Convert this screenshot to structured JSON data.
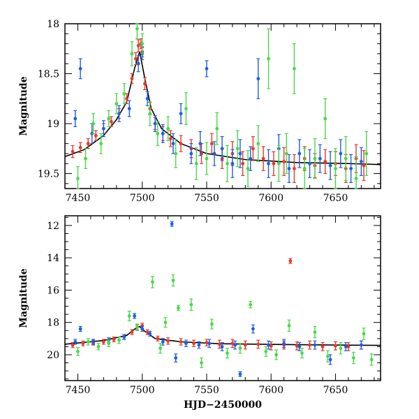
{
  "chart_data": [
    {
      "type": "scatter",
      "panel": "top",
      "title": "",
      "xlabel": "",
      "ylabel": "Magnitude",
      "xlim": [
        7440,
        7685
      ],
      "ylim": [
        19.65,
        18.0
      ],
      "y_inverted": true,
      "x_ticks": [
        7450,
        7500,
        7550,
        7600,
        7650
      ],
      "x_tick_labels": [
        "7450",
        "7500",
        "7550",
        "7600",
        "7650"
      ],
      "y_ticks": [
        18,
        18.5,
        19,
        19.5
      ],
      "y_tick_labels": [
        "18",
        "18.5",
        "19",
        "19.5"
      ],
      "grid": false,
      "legend": "none",
      "model_curve": {
        "color": "#000000",
        "x": [
          7440,
          7455,
          7470,
          7480,
          7488,
          7494,
          7498,
          7502,
          7507,
          7515,
          7530,
          7550,
          7580,
          7620,
          7660,
          7685
        ],
        "y": [
          19.33,
          19.26,
          19.12,
          18.96,
          18.78,
          18.45,
          18.28,
          18.55,
          18.85,
          19.05,
          19.2,
          19.3,
          19.36,
          19.39,
          19.4,
          19.41
        ]
      },
      "series": [
        {
          "color": "#e8372b",
          "x": [
            7446,
            7452,
            7458,
            7464,
            7470,
            7476,
            7482,
            7488,
            7492,
            7495,
            7497,
            7499,
            7500,
            7502,
            7506,
            7510,
            7516,
            7522,
            7530,
            7538,
            7546,
            7554,
            7562,
            7570,
            7578,
            7586,
            7594,
            7602,
            7610,
            7618,
            7626,
            7634,
            7642,
            7650,
            7658,
            7666,
            7672
          ],
          "y": [
            19.28,
            19.24,
            19.2,
            19.12,
            19.05,
            18.98,
            18.9,
            18.75,
            18.55,
            18.35,
            18.22,
            18.2,
            18.28,
            18.6,
            18.85,
            19.0,
            19.1,
            19.15,
            19.2,
            19.25,
            19.3,
            19.2,
            19.35,
            19.3,
            19.4,
            19.25,
            19.35,
            19.4,
            19.38,
            19.45,
            19.35,
            19.42,
            19.38,
            19.4,
            19.45,
            19.35,
            19.42
          ],
          "yerr": [
            0.06,
            0.05,
            0.05,
            0.05,
            0.05,
            0.05,
            0.05,
            0.05,
            0.05,
            0.06,
            0.06,
            0.05,
            0.05,
            0.06,
            0.06,
            0.06,
            0.07,
            0.08,
            0.08,
            0.09,
            0.1,
            0.1,
            0.1,
            0.12,
            0.12,
            0.12,
            0.12,
            0.12,
            0.14,
            0.14,
            0.12,
            0.12,
            0.12,
            0.12,
            0.14,
            0.14,
            0.15
          ]
        },
        {
          "color": "#1e5fe0",
          "x": [
            7448,
            7452,
            7461,
            7470,
            7482,
            7490,
            7497,
            7500,
            7504,
            7510,
            7516,
            7524,
            7530,
            7538,
            7545,
            7550,
            7556,
            7562,
            7570,
            7576,
            7584,
            7590,
            7598,
            7606,
            7614,
            7622,
            7630,
            7638,
            7646,
            7654,
            7662,
            7670
          ],
          "y": [
            18.95,
            18.45,
            19.1,
            19.05,
            18.9,
            18.85,
            18.4,
            18.3,
            18.75,
            19.0,
            19.1,
            19.2,
            18.9,
            19.3,
            19.2,
            18.45,
            19.3,
            19.25,
            19.4,
            19.3,
            19.35,
            18.55,
            19.4,
            19.25,
            19.45,
            19.3,
            19.4,
            19.35,
            19.42,
            19.3,
            19.45,
            19.38
          ],
          "yerr": [
            0.08,
            0.1,
            0.1,
            0.08,
            0.08,
            0.08,
            0.08,
            0.06,
            0.07,
            0.08,
            0.09,
            0.1,
            0.1,
            0.1,
            0.12,
            0.08,
            0.12,
            0.12,
            0.14,
            0.14,
            0.12,
            0.2,
            0.14,
            0.14,
            0.14,
            0.14,
            0.14,
            0.14,
            0.14,
            0.14,
            0.14,
            0.14
          ]
        },
        {
          "color": "#4ad84a",
          "x": [
            7450,
            7456,
            7462,
            7468,
            7474,
            7480,
            7486,
            7492,
            7496,
            7500,
            7506,
            7512,
            7520,
            7526,
            7534,
            7542,
            7550,
            7558,
            7566,
            7574,
            7582,
            7590,
            7598,
            7606,
            7612,
            7618,
            7626,
            7634,
            7642,
            7650,
            7658,
            7666,
            7674
          ],
          "y": [
            19.55,
            19.35,
            19.0,
            19.2,
            18.95,
            18.8,
            18.7,
            18.3,
            18.05,
            18.2,
            18.9,
            19.1,
            19.05,
            19.3,
            18.85,
            19.4,
            19.35,
            19.05,
            19.4,
            19.25,
            19.45,
            19.2,
            18.35,
            19.4,
            19.3,
            18.45,
            19.45,
            19.35,
            18.95,
            19.45,
            19.35,
            19.55,
            19.3
          ],
          "yerr": [
            0.12,
            0.1,
            0.1,
            0.1,
            0.08,
            0.1,
            0.1,
            0.12,
            0.1,
            0.1,
            0.12,
            0.12,
            0.12,
            0.14,
            0.16,
            0.16,
            0.16,
            0.16,
            0.18,
            0.18,
            0.18,
            0.18,
            0.3,
            0.18,
            0.2,
            0.25,
            0.2,
            0.2,
            0.2,
            0.2,
            0.22,
            0.22,
            0.22
          ]
        }
      ]
    },
    {
      "type": "scatter",
      "panel": "bottom",
      "title": "",
      "xlabel": "HJD−2450000",
      "ylabel": "Magnitude",
      "xlim": [
        7440,
        7685
      ],
      "ylim": [
        21.6,
        11.4
      ],
      "y_inverted": true,
      "x_ticks": [
        7450,
        7500,
        7550,
        7600,
        7650
      ],
      "x_tick_labels": [
        "7450",
        "7500",
        "7550",
        "7600",
        "7650"
      ],
      "y_ticks": [
        12,
        14,
        16,
        18,
        20
      ],
      "y_tick_labels": [
        "12",
        "14",
        "16",
        "18",
        "20"
      ],
      "grid": false,
      "legend": "none",
      "model_curve": {
        "color": "#000000",
        "x": [
          7440,
          7470,
          7488,
          7494,
          7498,
          7502,
          7510,
          7530,
          7560,
          7620,
          7685
        ],
        "y": [
          19.35,
          19.12,
          18.8,
          18.42,
          18.25,
          18.55,
          19.0,
          19.2,
          19.32,
          19.38,
          19.42
        ]
      },
      "series": [
        {
          "color": "#e8372b",
          "x": [
            7446,
            7454,
            7462,
            7470,
            7478,
            7486,
            7492,
            7496,
            7500,
            7504,
            7512,
            7520,
            7530,
            7540,
            7550,
            7560,
            7570,
            7580,
            7590,
            7600,
            7610,
            7615,
            7620,
            7630,
            7640,
            7650,
            7660,
            7670
          ],
          "y": [
            19.4,
            19.3,
            19.25,
            19.2,
            19.05,
            18.9,
            18.6,
            18.3,
            18.2,
            18.6,
            19.0,
            19.15,
            19.2,
            19.3,
            19.25,
            19.35,
            19.3,
            19.4,
            19.35,
            19.45,
            19.4,
            14.2,
            19.45,
            19.4,
            19.5,
            19.45,
            19.5,
            19.4
          ],
          "yerr": [
            0.15,
            0.15,
            0.15,
            0.15,
            0.15,
            0.15,
            0.15,
            0.15,
            0.15,
            0.15,
            0.15,
            0.2,
            0.2,
            0.2,
            0.2,
            0.25,
            0.25,
            0.25,
            0.25,
            0.25,
            0.25,
            0.15,
            0.25,
            0.25,
            0.25,
            0.25,
            0.25,
            0.25
          ]
        },
        {
          "color": "#1e5fe0",
          "x": [
            7448,
            7452,
            7462,
            7474,
            7486,
            7494,
            7500,
            7506,
            7516,
            7523,
            7526,
            7534,
            7544,
            7552,
            7562,
            7572,
            7576,
            7586,
            7598,
            7610,
            7622,
            7634,
            7646,
            7658,
            7670
          ],
          "y": [
            19.2,
            18.4,
            19.2,
            19.1,
            18.9,
            17.6,
            18.4,
            18.7,
            19.2,
            11.9,
            20.2,
            19.3,
            19.4,
            19.3,
            19.5,
            19.4,
            21.2,
            18.4,
            19.4,
            19.3,
            19.5,
            19.4,
            20.3,
            19.5,
            19.4
          ],
          "yerr": [
            0.15,
            0.15,
            0.15,
            0.15,
            0.15,
            0.15,
            0.15,
            0.15,
            0.2,
            0.15,
            0.25,
            0.2,
            0.2,
            0.25,
            0.25,
            0.25,
            0.15,
            0.25,
            0.25,
            0.25,
            0.25,
            0.25,
            0.3,
            0.25,
            0.25
          ]
        },
        {
          "color": "#4ad84a",
          "x": [
            7450,
            7458,
            7466,
            7474,
            7482,
            7490,
            7496,
            7508,
            7514,
            7518,
            7524,
            7528,
            7538,
            7546,
            7554,
            7566,
            7576,
            7584,
            7596,
            7604,
            7614,
            7624,
            7634,
            7644,
            7654,
            7664,
            7672,
            7678
          ],
          "y": [
            19.8,
            19.2,
            19.5,
            19.3,
            19.1,
            17.6,
            18.3,
            15.5,
            19.6,
            18.0,
            15.4,
            17.1,
            16.9,
            20.5,
            18.1,
            19.9,
            19.6,
            16.9,
            19.8,
            20.0,
            18.2,
            19.9,
            18.6,
            20.1,
            19.6,
            20.2,
            18.7,
            20.3
          ],
          "yerr": [
            0.25,
            0.2,
            0.2,
            0.2,
            0.2,
            0.3,
            0.2,
            0.35,
            0.3,
            0.3,
            0.35,
            0.15,
            0.35,
            0.3,
            0.3,
            0.3,
            0.3,
            0.2,
            0.3,
            0.3,
            0.35,
            0.3,
            0.35,
            0.35,
            0.35,
            0.35,
            0.35,
            0.35
          ]
        }
      ]
    }
  ]
}
